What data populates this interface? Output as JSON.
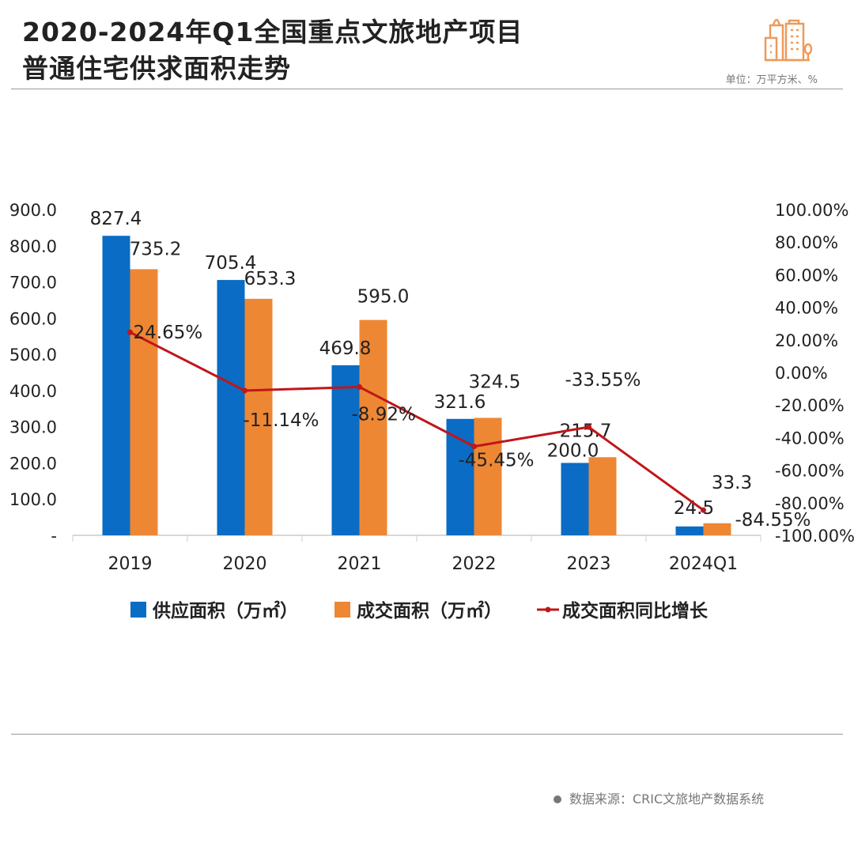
{
  "header": {
    "title_line1": "2020-2024年Q1全国重点文旅地产项目",
    "title_line2": "普通住宅供求面积走势",
    "unit": "单位：万平方米、%",
    "logo_icon": "buildings-icon"
  },
  "footer": {
    "source": "数据来源：CRIC文旅地产数据系统"
  },
  "chart_data": {
    "type": "bar",
    "categories": [
      "2019",
      "2020",
      "2021",
      "2022",
      "2023",
      "2024Q1"
    ],
    "series": [
      {
        "name": "供应面积（万㎡）",
        "type": "bar",
        "axis": "left",
        "color": "#0a6cc4",
        "values": [
          827.4,
          705.4,
          469.8,
          321.6,
          200.0,
          24.5
        ],
        "labels": [
          "827.4",
          "705.4",
          "469.8",
          "321.6",
          "200.0",
          "24.5"
        ]
      },
      {
        "name": "成交面积（万㎡）",
        "type": "bar",
        "axis": "left",
        "color": "#ee8733",
        "values": [
          735.2,
          653.3,
          595.0,
          324.5,
          215.7,
          33.3
        ],
        "labels": [
          "735.2",
          "653.3",
          "595.0",
          "324.5",
          "215.7",
          "33.3"
        ]
      },
      {
        "name": "成交面积同比增长",
        "type": "line",
        "axis": "right",
        "color": "#c0161b",
        "values": [
          24.65,
          -11.14,
          -8.92,
          -45.45,
          -33.55,
          -84.55
        ],
        "labels": [
          "24.65%",
          "-11.14%",
          "-8.92%",
          "-45.45%",
          "-33.55%",
          "-84.55%"
        ]
      }
    ],
    "left_axis": {
      "ylim": [
        0,
        900
      ],
      "ticks": [
        "-",
        "100.0",
        "200.0",
        "300.0",
        "400.0",
        "500.0",
        "600.0",
        "700.0",
        "800.0",
        "900.0"
      ]
    },
    "right_axis": {
      "ylim": [
        -100,
        100
      ],
      "ticks": [
        "-100.00%",
        "-80.00%",
        "-60.00%",
        "-40.00%",
        "-20.00%",
        "0.00%",
        "20.00%",
        "40.00%",
        "60.00%",
        "80.00%",
        "100.00%"
      ]
    },
    "grid": false,
    "legend": "bottom"
  }
}
